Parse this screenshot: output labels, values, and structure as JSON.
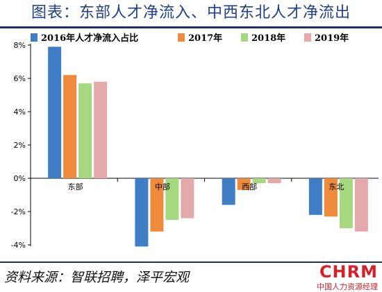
{
  "page_title": "图表：东部人才净流入、中西东北人才净流出",
  "source_text": "资料来源：智联招聘，泽平宏观",
  "watermark": {
    "main": "CHRM",
    "sub": "中国人力资源经理"
  },
  "colors": {
    "title": "#1f3f8a",
    "rule": "#1f2f6e",
    "logo": "#d6202a"
  },
  "chart_data": {
    "type": "bar",
    "title": "",
    "xlabel": "",
    "ylabel": "",
    "categories": [
      "东部",
      "中部",
      "西部",
      "东北"
    ],
    "series": [
      {
        "name": "2016年人才净流入占比",
        "values": [
          7.9,
          -4.1,
          -1.6,
          -2.2
        ],
        "color": "#3f7ec4"
      },
      {
        "name": "2017年",
        "values": [
          6.2,
          -3.2,
          -0.7,
          -2.3
        ],
        "color": "#ee8a3c"
      },
      {
        "name": "2018年",
        "values": [
          5.7,
          -2.5,
          -0.3,
          -3.0
        ],
        "color": "#a6d880"
      },
      {
        "name": "2019年",
        "values": [
          5.8,
          -2.4,
          -0.3,
          -3.2
        ],
        "color": "#e4a9ab"
      }
    ],
    "y_ticks": [
      "8%",
      "6%",
      "4%",
      "2%",
      "0%",
      "-2%",
      "-4%"
    ],
    "y_tick_values": [
      8,
      6,
      4,
      2,
      0,
      -2,
      -4
    ],
    "ylim": [
      -4,
      8
    ],
    "grid": false,
    "legend_position": "top"
  }
}
